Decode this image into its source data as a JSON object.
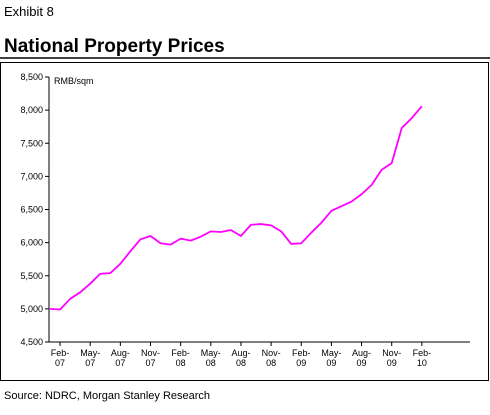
{
  "header": {
    "exhibit": "Exhibit 8",
    "title": "National Property Prices"
  },
  "chart_data": {
    "type": "line",
    "y_unit_label": "RMB/sqm",
    "categories": [
      null,
      "Feb-\n07",
      null,
      null,
      "May-\n07",
      null,
      null,
      "Aug-\n07",
      null,
      null,
      "Nov-\n07",
      null,
      null,
      "Feb-\n08",
      null,
      null,
      "May-\n08",
      null,
      null,
      "Aug-\n08",
      null,
      null,
      "Nov-\n08",
      null,
      null,
      "Feb-\n09",
      null,
      null,
      "May-\n09",
      null,
      null,
      "Aug-\n09",
      null,
      null,
      "Nov-\n09",
      null,
      null,
      "Feb-\n10"
    ],
    "values": [
      5000,
      4990,
      5150,
      5250,
      5380,
      5530,
      5540,
      5680,
      5870,
      6050,
      6100,
      5990,
      5970,
      6060,
      6030,
      6090,
      6170,
      6160,
      6190,
      6100,
      6270,
      6280,
      6260,
      6170,
      5980,
      5990,
      6150,
      6300,
      6480,
      6550,
      6620,
      6730,
      6870,
      7100,
      7200,
      7730,
      7880,
      8060
    ],
    "color": "#ff00ff",
    "ylim": [
      4500,
      8500
    ],
    "yticks": [
      {
        "value": 4500,
        "label": "4,500"
      },
      {
        "value": 5000,
        "label": "5,000"
      },
      {
        "value": 5500,
        "label": "5,500"
      },
      {
        "value": 6000,
        "label": "6,000"
      },
      {
        "value": 6500,
        "label": "6,500"
      },
      {
        "value": 7000,
        "label": "7,000"
      },
      {
        "value": 7500,
        "label": "7,500"
      },
      {
        "value": 8000,
        "label": "8,000"
      },
      {
        "value": 8500,
        "label": "8,500"
      }
    ]
  },
  "footer": {
    "source": "Source: NDRC, Morgan Stanley Research"
  }
}
